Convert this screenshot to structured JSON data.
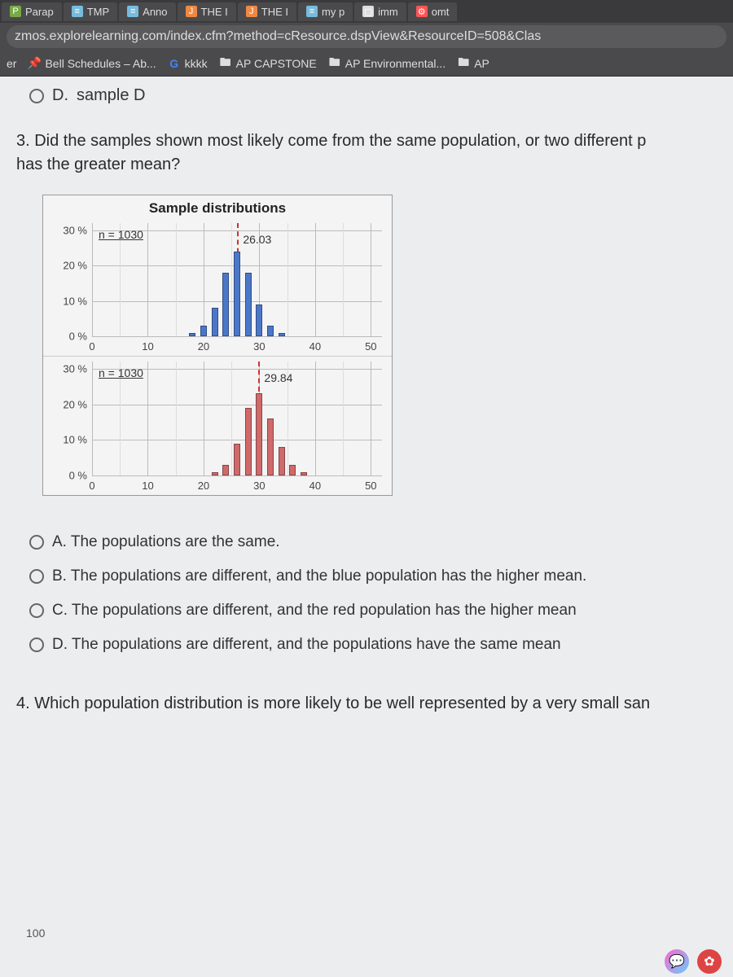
{
  "tabs": [
    {
      "icon": "P",
      "icon_bg": "#7a4",
      "label": "Parap"
    },
    {
      "icon": "≡",
      "icon_bg": "#7bd",
      "label": "TMP"
    },
    {
      "icon": "≡",
      "icon_bg": "#7bd",
      "label": "Anno"
    },
    {
      "icon": "J",
      "icon_bg": "#e84",
      "label": "THE I"
    },
    {
      "icon": "J",
      "icon_bg": "#e84",
      "label": "THE I"
    },
    {
      "icon": "≡",
      "icon_bg": "#7bd",
      "label": "my p"
    },
    {
      "icon": "▢",
      "icon_bg": "#ddd",
      "label": "imm"
    },
    {
      "icon": "⚙",
      "icon_bg": "#f55",
      "label": "omt"
    }
  ],
  "url": "zmos.explorelearning.com/index.cfm?method=cResource.dspView&ResourceID=508&Clas",
  "bookmarks": {
    "er": "er",
    "bell": "Bell Schedules – Ab...",
    "kkkk": "kkkk",
    "capstone": "AP CAPSTONE",
    "env": "AP Environmental...",
    "ap": "AP"
  },
  "prev_option": {
    "letter": "D.",
    "text": "sample D"
  },
  "q3": {
    "text": "3. Did the samples shown most likely come from the same population, or two different p",
    "text2": "has the greater mean?"
  },
  "chart": {
    "title": "Sample distributions",
    "x_ticks": [
      0,
      10,
      20,
      30,
      40,
      50
    ],
    "y_ticks": [
      "30 %",
      "20 %",
      "10 %",
      "0 %"
    ],
    "y_vals": [
      30,
      20,
      10,
      0
    ],
    "xlim": [
      0,
      52
    ],
    "ylim": [
      0,
      32
    ],
    "grid_color": "#bbbbbb",
    "panels": [
      {
        "n_label": "n = 1030",
        "mean": 26.03,
        "mean_label": "26.03",
        "bar_color": "#4b77c9",
        "bars": [
          {
            "x": 18,
            "h": 1
          },
          {
            "x": 20,
            "h": 3
          },
          {
            "x": 22,
            "h": 8
          },
          {
            "x": 24,
            "h": 18
          },
          {
            "x": 26,
            "h": 24
          },
          {
            "x": 28,
            "h": 18
          },
          {
            "x": 30,
            "h": 9
          },
          {
            "x": 32,
            "h": 3
          },
          {
            "x": 34,
            "h": 1
          }
        ]
      },
      {
        "n_label": "n = 1030",
        "mean": 29.84,
        "mean_label": "29.84",
        "bar_color": "#d06a6a",
        "bars": [
          {
            "x": 22,
            "h": 1
          },
          {
            "x": 24,
            "h": 3
          },
          {
            "x": 26,
            "h": 9
          },
          {
            "x": 28,
            "h": 19
          },
          {
            "x": 30,
            "h": 23
          },
          {
            "x": 32,
            "h": 16
          },
          {
            "x": 34,
            "h": 8
          },
          {
            "x": 36,
            "h": 3
          },
          {
            "x": 38,
            "h": 1
          }
        ]
      }
    ]
  },
  "options": {
    "a": "A. The populations are the same.",
    "b": "B. The populations are different, and the blue population has the higher mean.",
    "c": "C. The populations are different, and the red population has the higher mean",
    "d": "D. The populations are different, and the populations have the same mean"
  },
  "q4": "4. Which population distribution is more likely to be well represented by a very small san",
  "pagecut": "100"
}
